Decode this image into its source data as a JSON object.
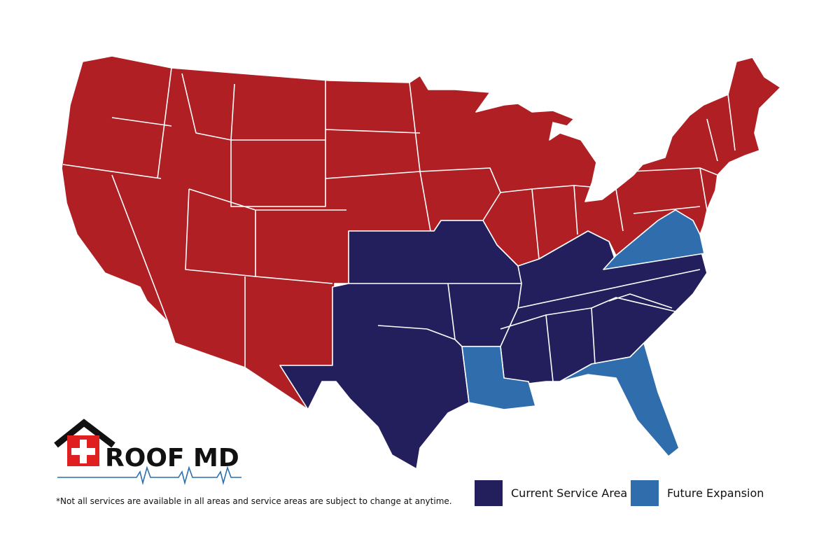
{
  "logo": {
    "text": "ROOF MD"
  },
  "legend": [
    {
      "label": "Current Service Area",
      "color": "#231f5c"
    },
    {
      "label": "Future Expansion",
      "color": "#2f6dad"
    }
  ],
  "other_color": "#b01f24",
  "footnote": "*Not all services are available in all areas and service areas are subject to change at anytime."
}
